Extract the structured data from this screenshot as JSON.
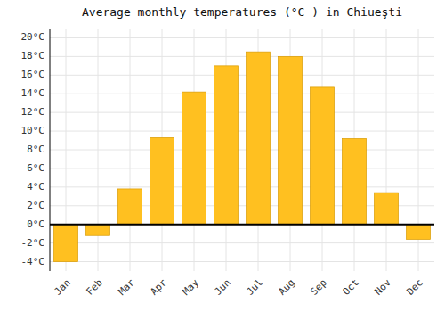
{
  "chart_data": {
    "type": "bar",
    "title": "Average monthly temperatures (°C ) in Chiueşti",
    "categories": [
      "Jan",
      "Feb",
      "Mar",
      "Apr",
      "May",
      "Jun",
      "Jul",
      "Aug",
      "Sep",
      "Oct",
      "Nov",
      "Dec"
    ],
    "values": [
      -4.0,
      -1.2,
      3.8,
      9.3,
      14.2,
      17.0,
      18.5,
      18.0,
      14.7,
      9.2,
      3.4,
      -1.6
    ],
    "color": "#FFC020",
    "ylim": [
      -5,
      21
    ],
    "yticks": [
      {
        "value": -4,
        "label": "-4°C"
      },
      {
        "value": -2,
        "label": "-2°C"
      },
      {
        "value": 0,
        "label": "0°C"
      },
      {
        "value": 2,
        "label": "2°C"
      },
      {
        "value": 4,
        "label": "4°C"
      },
      {
        "value": 6,
        "label": "6°C"
      },
      {
        "value": 8,
        "label": "8°C"
      },
      {
        "value": 10,
        "label": "10°C"
      },
      {
        "value": 12,
        "label": "12°C"
      },
      {
        "value": 14,
        "label": "14°C"
      },
      {
        "value": 16,
        "label": "16°C"
      },
      {
        "value": 18,
        "label": "18°C"
      },
      {
        "value": 20,
        "label": "20°C"
      }
    ],
    "grid": true
  }
}
